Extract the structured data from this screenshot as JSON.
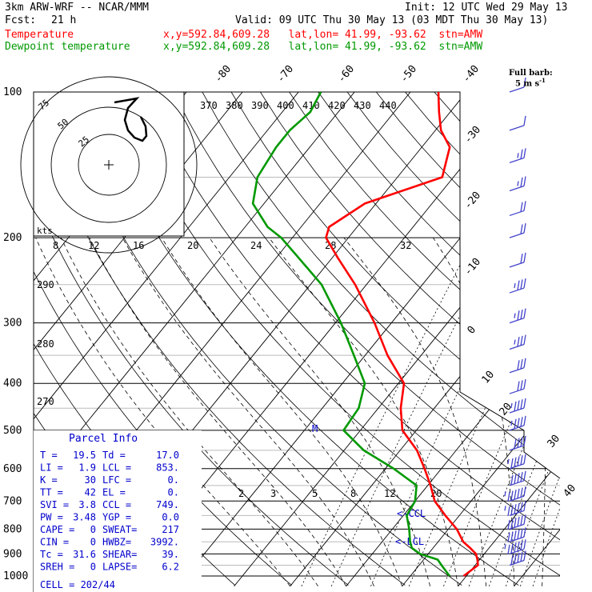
{
  "header": {
    "line1_left": "3km ARW-WRF -- NCAR/MMM",
    "line1_right": "Init: 12 UTC Wed 29 May 13",
    "fcst_label": "Fcst:",
    "fcst_value": "21 h",
    "valid": "Valid: 09 UTC Thu 30 May 13 (03 MDT Thu 30 May 13)",
    "temp_label": "Temperature",
    "temp_info": "x,y=592.84,609.28   lat,lon= 41.99, -93.62  stn=AMW",
    "dew_label": "Dewpoint temperature",
    "dew_info": "x,y=592.84,609.28   lat,lon= 41.99, -93.62  stn=AMW",
    "barb_note1": "Full barb:",
    "barb_note2": "5 m s",
    "barb_note_sup": "-1"
  },
  "colors": {
    "temperature": "#ff0000",
    "dewpoint": "#009900",
    "panel_text": "#0000cc",
    "barbs": "#4444cc",
    "grid": "#000000"
  },
  "parcel_info": {
    "title": "Parcel Info",
    "rows": [
      [
        "T  =",
        "19.5",
        "Td =",
        "17.0"
      ],
      [
        "LI =",
        "1.9",
        "LCL =",
        "853."
      ],
      [
        "K  =",
        "30",
        "LFC =",
        "0."
      ],
      [
        "TT =",
        "42",
        "EL  =",
        "0."
      ],
      [
        "SVI =",
        "3.8",
        "CCL =",
        "749."
      ],
      [
        "PW =",
        "3.48",
        "YGP =",
        "0.0"
      ],
      [
        "CAPE =",
        "0",
        "SWEAT=",
        "217"
      ],
      [
        "CIN =",
        "0",
        "HWBZ=",
        "3992."
      ],
      [
        "Tc =",
        "31.6",
        "SHEAR=",
        "39."
      ],
      [
        "SREH =",
        "0",
        "LAPSE=",
        "6.2"
      ]
    ],
    "cell": "CELL = 202/44"
  },
  "hodograph": {
    "label_kts": "kts",
    "rings": [
      "25",
      "50",
      "75"
    ]
  },
  "markers": {
    "ccl": "<-CCL",
    "lcl": "<-LCL",
    "m": "M"
  },
  "chart_data": {
    "type": "skew-t",
    "y_axis": "pressure (hPa)",
    "pressure_ticks": [
      100,
      200,
      300,
      400,
      500,
      600,
      700,
      800,
      900,
      1000
    ],
    "isotherm_labels": [
      -80,
      -70,
      -60,
      -50,
      -40,
      -30,
      -20,
      -10,
      0,
      10,
      20,
      30,
      40
    ],
    "theta_labels_top": [
      370,
      380,
      390,
      400,
      410,
      420,
      430,
      440
    ],
    "theta_labels_left": [
      290,
      280,
      270
    ],
    "mixing_ratio_labels_upper": [
      8,
      12,
      16,
      20,
      24,
      28,
      32
    ],
    "mixing_ratio_labels_lower": [
      2,
      3,
      5,
      8,
      12,
      20
    ],
    "series": [
      {
        "name": "Temperature",
        "p": [
          1000,
          950,
          925,
          900,
          875,
          850,
          800,
          750,
          700,
          650,
          600,
          550,
          500,
          450,
          400,
          350,
          300,
          250,
          220,
          200,
          190,
          170,
          150,
          130,
          120,
          110,
          100
        ],
        "t": [
          19.5,
          20.5,
          19.6,
          18.5,
          16.6,
          14.5,
          11.5,
          7.5,
          3.5,
          0.5,
          -3.0,
          -7.0,
          -12.5,
          -16.0,
          -19.0,
          -26.0,
          -33.0,
          -42.0,
          -49.0,
          -54.0,
          -55.0,
          -52.0,
          -42.0,
          -45.0,
          -49.0,
          -52.0,
          -55.0
        ]
      },
      {
        "name": "Dewpoint temperature",
        "p": [
          1000,
          950,
          925,
          900,
          875,
          850,
          800,
          750,
          700,
          650,
          600,
          550,
          500,
          450,
          400,
          350,
          300,
          250,
          220,
          200,
          190,
          170,
          150,
          130,
          120,
          110,
          100
        ],
        "t": [
          17.0,
          14.0,
          12.5,
          8.5,
          6.2,
          5.0,
          3.0,
          0.6,
          0.0,
          -2.0,
          -8.5,
          -16.5,
          -23.0,
          -23.5,
          -26.0,
          -32.0,
          -39.0,
          -48.0,
          -56.0,
          -62.0,
          -66.0,
          -72.0,
          -75.0,
          -76.0,
          -76.0,
          -75.0,
          -76.0
        ]
      }
    ],
    "wind_barbs_kts": [
      10,
      10,
      15,
      15,
      20,
      20,
      20,
      25,
      25,
      25,
      30,
      30,
      35,
      35,
      40,
      45,
      50,
      55,
      55,
      60,
      60,
      55,
      50
    ]
  }
}
